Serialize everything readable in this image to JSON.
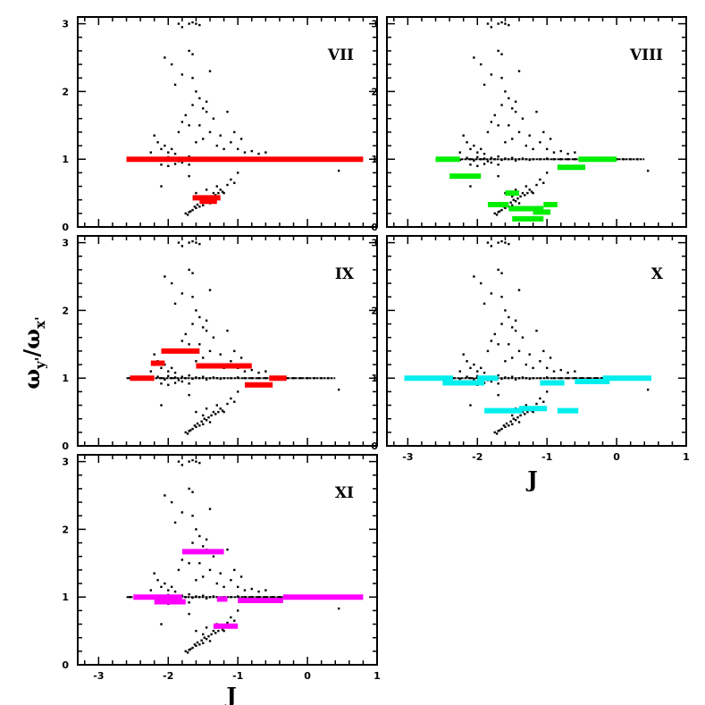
{
  "chart_data": {
    "type": "scatter",
    "ylabel": "ω",
    "ylabel_sub": "y'",
    "ylabel_den": "ω",
    "ylabel_den_sub": "x'",
    "xlabel": "J",
    "xlim": [
      -3.3,
      1.0
    ],
    "ylim": [
      0,
      3.1
    ],
    "xticks": [
      "-3",
      "-2",
      "-1",
      "0",
      "1"
    ],
    "yticks": [
      "0",
      "1",
      "2",
      "3"
    ],
    "background_points": [
      [
        -2.55,
        1.0
      ],
      [
        -2.45,
        1.01
      ],
      [
        -2.35,
        1.0
      ],
      [
        -2.25,
        0.99
      ],
      [
        -2.15,
        1.02
      ],
      [
        -2.1,
        1.0
      ],
      [
        -2.05,
        0.98
      ],
      [
        -2.0,
        1.03
      ],
      [
        -1.95,
        1.0
      ],
      [
        -1.9,
        1.01
      ],
      [
        -1.85,
        0.97
      ],
      [
        -1.8,
        1.02
      ],
      [
        -1.75,
        1.0
      ],
      [
        -1.7,
        1.04
      ],
      [
        -1.65,
        0.99
      ],
      [
        -1.6,
        1.01
      ],
      [
        -1.55,
        1.0
      ],
      [
        -1.5,
        1.02
      ],
      [
        -1.45,
        0.98
      ],
      [
        -1.4,
        1.0
      ],
      [
        -1.35,
        1.01
      ],
      [
        -1.3,
        1.0
      ],
      [
        -1.25,
        0.99
      ],
      [
        -1.2,
        1.0
      ],
      [
        -1.1,
        1.0
      ],
      [
        -1.0,
        1.01
      ],
      [
        -0.9,
        1.0
      ],
      [
        -0.8,
        1.0
      ],
      [
        -0.7,
        1.0
      ],
      [
        -0.6,
        1.0
      ],
      [
        -0.5,
        1.0
      ],
      [
        -0.4,
        1.0
      ],
      [
        -0.3,
        1.0
      ],
      [
        -0.2,
        1.0
      ],
      [
        -0.1,
        1.0
      ],
      [
        0.0,
        1.0
      ],
      [
        0.1,
        1.0
      ],
      [
        0.2,
        1.0
      ],
      [
        0.3,
        1.0
      ],
      [
        0.45,
        0.83
      ],
      [
        -2.2,
        1.35
      ],
      [
        -2.15,
        1.25
      ],
      [
        -2.1,
        1.15
      ],
      [
        -2.05,
        1.2
      ],
      [
        -2.0,
        1.1
      ],
      [
        -1.95,
        1.15
      ],
      [
        -1.9,
        1.08
      ],
      [
        -2.25,
        1.1
      ],
      [
        -2.1,
        0.92
      ],
      [
        -2.0,
        0.9
      ],
      [
        -1.9,
        0.93
      ],
      [
        -1.8,
        0.95
      ],
      [
        -1.7,
        0.92
      ],
      [
        -2.1,
        0.6
      ],
      [
        -1.7,
        0.75
      ],
      [
        -1.6,
        0.5
      ],
      [
        -1.5,
        0.45
      ],
      [
        -1.45,
        0.55
      ],
      [
        -1.4,
        0.35
      ],
      [
        -1.35,
        0.5
      ],
      [
        -1.3,
        0.6
      ],
      [
        -1.25,
        0.55
      ],
      [
        -1.2,
        0.5
      ],
      [
        -1.15,
        0.62
      ],
      [
        -1.1,
        0.7
      ],
      [
        -1.05,
        0.65
      ],
      [
        -1.0,
        0.8
      ],
      [
        -1.55,
        0.3
      ],
      [
        -1.6,
        0.28
      ],
      [
        -1.65,
        0.25
      ],
      [
        -1.7,
        0.22
      ],
      [
        -1.75,
        0.2
      ],
      [
        -1.72,
        0.18
      ],
      [
        -1.68,
        0.23
      ],
      [
        -1.62,
        0.3
      ],
      [
        -1.58,
        0.33
      ],
      [
        -1.52,
        0.36
      ],
      [
        -1.48,
        0.4
      ],
      [
        -1.42,
        0.42
      ],
      [
        -1.38,
        0.45
      ],
      [
        -1.32,
        0.47
      ],
      [
        -1.28,
        0.5
      ],
      [
        -1.22,
        0.52
      ],
      [
        -1.5,
        0.32
      ],
      [
        -1.45,
        0.38
      ],
      [
        -1.6,
        1.25
      ],
      [
        -1.55,
        1.5
      ],
      [
        -1.5,
        1.3
      ],
      [
        -1.45,
        1.7
      ],
      [
        -1.4,
        1.4
      ],
      [
        -1.35,
        1.6
      ],
      [
        -1.3,
        1.2
      ],
      [
        -1.25,
        1.35
      ],
      [
        -1.2,
        1.15
      ],
      [
        -1.15,
        1.7
      ],
      [
        -1.1,
        1.25
      ],
      [
        -1.05,
        1.4
      ],
      [
        -1.0,
        1.15
      ],
      [
        -0.95,
        1.3
      ],
      [
        -0.9,
        1.1
      ],
      [
        -0.8,
        1.12
      ],
      [
        -0.7,
        1.08
      ],
      [
        -0.6,
        1.1
      ],
      [
        -1.65,
        1.8
      ],
      [
        -1.7,
        1.5
      ],
      [
        -1.65,
        2.2
      ],
      [
        -1.6,
        2.0
      ],
      [
        -1.55,
        1.9
      ],
      [
        -1.5,
        1.75
      ],
      [
        -1.45,
        1.85
      ],
      [
        -1.4,
        2.3
      ],
      [
        -1.75,
        1.65
      ],
      [
        -1.8,
        1.55
      ],
      [
        -1.85,
        1.4
      ],
      [
        -1.85,
        3.0
      ],
      [
        -1.8,
        2.95
      ],
      [
        -1.7,
        3.0
      ],
      [
        -1.65,
        3.02
      ],
      [
        -1.6,
        3.0
      ],
      [
        -1.55,
        2.98
      ],
      [
        -1.7,
        2.6
      ],
      [
        -1.65,
        2.55
      ],
      [
        -2.05,
        2.5
      ],
      [
        -1.95,
        2.4
      ],
      [
        -1.9,
        2.1
      ],
      [
        -1.8,
        2.25
      ]
    ],
    "panels": [
      {
        "label": "VII",
        "color": "#ff0000",
        "show_x_ticklabels": false,
        "segments": [
          [
            -2.6,
            0.8,
            1.0
          ],
          [
            -1.65,
            -1.25,
            0.43
          ],
          [
            -1.55,
            -1.3,
            0.38
          ]
        ]
      },
      {
        "label": "VIII",
        "color": "#00ee00",
        "show_x_ticklabels": false,
        "segments": [
          [
            -2.6,
            -2.25,
            1.0
          ],
          [
            -2.4,
            -1.95,
            0.75
          ],
          [
            -1.85,
            -1.55,
            0.33
          ],
          [
            -1.55,
            -1.05,
            0.27
          ],
          [
            -1.5,
            -1.05,
            0.12
          ],
          [
            -1.2,
            -0.95,
            0.22
          ],
          [
            -1.05,
            -0.85,
            0.33
          ],
          [
            -0.85,
            -0.45,
            0.88
          ],
          [
            -0.55,
            0.0,
            1.0
          ],
          [
            -1.6,
            -1.4,
            0.5
          ]
        ]
      },
      {
        "label": "IX",
        "color": "#ff0000",
        "show_x_ticklabels": false,
        "segments": [
          [
            -2.55,
            -2.2,
            1.0
          ],
          [
            -2.25,
            -2.05,
            1.22
          ],
          [
            -2.1,
            -1.55,
            1.4
          ],
          [
            -1.6,
            -0.8,
            1.18
          ],
          [
            -0.9,
            -0.5,
            0.9
          ],
          [
            -0.55,
            -0.3,
            1.0
          ]
        ]
      },
      {
        "label": "X",
        "color": "#00eeee",
        "show_x_ticklabels": true,
        "segments": [
          [
            -3.05,
            -2.35,
            1.0
          ],
          [
            -2.5,
            -1.9,
            0.93
          ],
          [
            -1.9,
            -1.35,
            0.52
          ],
          [
            -1.4,
            -1.0,
            0.55
          ],
          [
            -1.1,
            -0.75,
            0.93
          ],
          [
            -0.85,
            -0.55,
            0.52
          ],
          [
            -0.6,
            -0.1,
            0.95
          ],
          [
            -0.2,
            0.5,
            1.0
          ],
          [
            -2.0,
            -1.7,
            1.0
          ]
        ]
      },
      {
        "label": "XI",
        "color": "#ff00ff",
        "show_x_ticklabels": true,
        "segments": [
          [
            -2.5,
            -1.8,
            1.0
          ],
          [
            -2.2,
            -1.75,
            0.93
          ],
          [
            -1.8,
            -1.2,
            1.67
          ],
          [
            -1.3,
            -1.15,
            0.97
          ],
          [
            -1.35,
            -1.0,
            0.57
          ],
          [
            -1.0,
            -0.35,
            0.95
          ],
          [
            -0.35,
            0.8,
            1.0
          ]
        ]
      }
    ]
  }
}
